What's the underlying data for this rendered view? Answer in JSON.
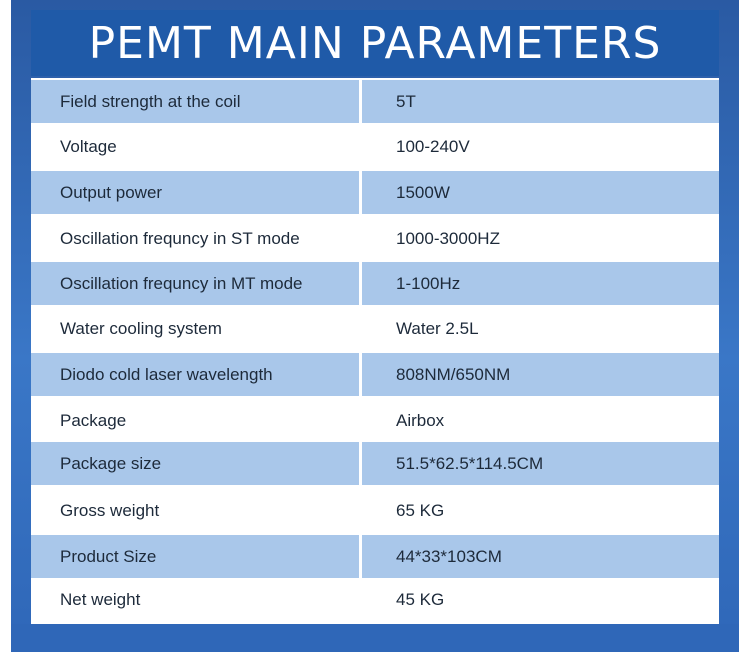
{
  "title": "PEMT MAIN PARAMETERS",
  "rows": [
    {
      "label": "Field strength at the coil",
      "value": "5T"
    },
    {
      "label": "Voltage",
      "value": "100-240V"
    },
    {
      "label": "Output power",
      "value": "1500W"
    },
    {
      "label": "Oscillation frequncy in ST mode",
      "value": "1000-3000HZ"
    },
    {
      "label": "Oscillation frequncy in MT mode",
      "value": "1-100Hz"
    },
    {
      "label": "Water cooling system",
      "value": "Water 2.5L"
    },
    {
      "label": "Diodo cold laser wavelength",
      "value": "808NM/650NM"
    },
    {
      "label": "Package",
      "value": "Airbox"
    },
    {
      "label": "Package size",
      "value": "51.5*62.5*114.5CM"
    },
    {
      "label": "Gross weight",
      "value": "65 KG"
    },
    {
      "label": "Product Size",
      "value": "44*33*103CM"
    },
    {
      "label": "Net weight",
      "value": "45 KG"
    }
  ]
}
